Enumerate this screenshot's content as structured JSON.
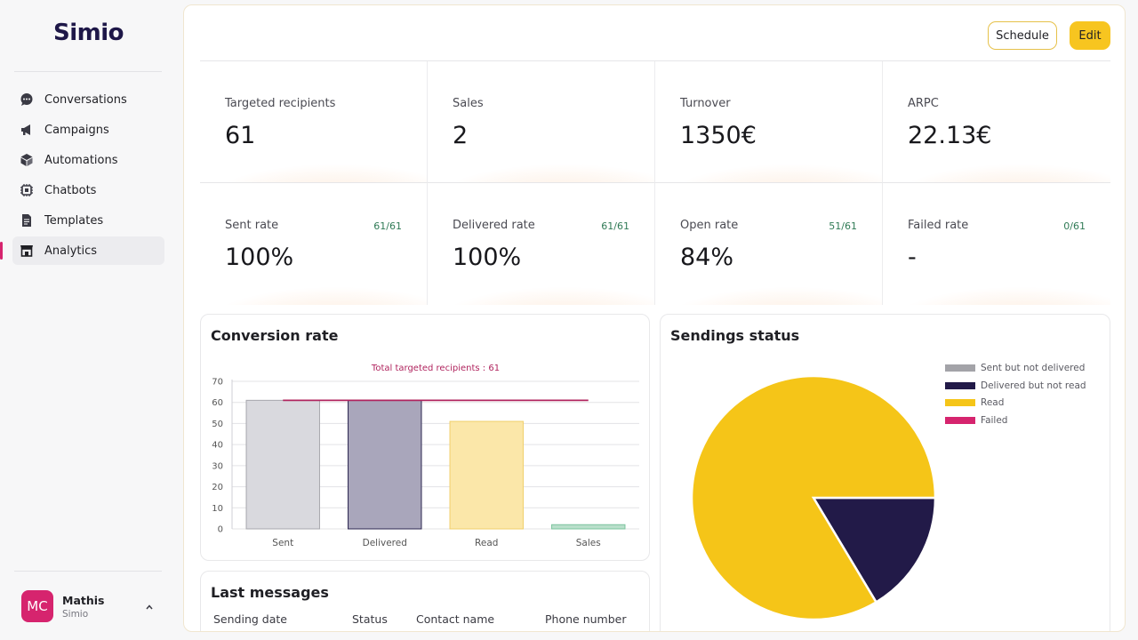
{
  "brand": {
    "name": "Simio"
  },
  "nav": {
    "items": [
      {
        "label": "Conversations",
        "icon": "chat-bubble-icon",
        "active": false
      },
      {
        "label": "Campaigns",
        "icon": "megaphone-icon",
        "active": false
      },
      {
        "label": "Automations",
        "icon": "cube-icon",
        "active": false
      },
      {
        "label": "Chatbots",
        "icon": "chip-icon",
        "active": false
      },
      {
        "label": "Templates",
        "icon": "document-icon",
        "active": false
      },
      {
        "label": "Analytics",
        "icon": "store-icon",
        "active": true
      }
    ]
  },
  "user": {
    "initials": "MC",
    "name": "Mathis",
    "org": "Simio"
  },
  "header": {
    "schedule_label": "Schedule",
    "edit_label": "Edit"
  },
  "stats": [
    {
      "label": "Targeted recipients",
      "value": "61",
      "ratio": ""
    },
    {
      "label": "Sales",
      "value": "2",
      "ratio": ""
    },
    {
      "label": "Turnover",
      "value": "1350€",
      "ratio": ""
    },
    {
      "label": "ARPC",
      "value": "22.13€",
      "ratio": ""
    },
    {
      "label": "Sent rate",
      "value": "100%",
      "ratio": "61/61"
    },
    {
      "label": "Delivered rate",
      "value": "100%",
      "ratio": "61/61"
    },
    {
      "label": "Open rate",
      "value": "84%",
      "ratio": "51/61"
    },
    {
      "label": "Failed rate",
      "value": "-",
      "ratio": "0/61"
    }
  ],
  "conversion_card": {
    "title": "Conversion rate"
  },
  "sendings_card": {
    "title": "Sendings status"
  },
  "messages_card": {
    "title": "Last messages",
    "columns": [
      "Sending date",
      "Status",
      "Contact name",
      "Phone number"
    ]
  },
  "colors": {
    "accent": "#f7c520",
    "brand_dark": "#1e1748",
    "highlight": "#d6246e"
  },
  "chart_data": [
    {
      "type": "bar",
      "title": "Total targeted recipients : 61",
      "categories": [
        "Sent",
        "Delivered",
        "Read",
        "Sales"
      ],
      "values": [
        61,
        61,
        51,
        2
      ],
      "colors": [
        "#d9d9de",
        "#a9a6bb",
        "#fbe7a9",
        "#b9dfcb"
      ],
      "borders": [
        "#a7a7ad",
        "#2b2550",
        "#f0cf6a",
        "#7cc49e"
      ],
      "ylim": [
        0,
        70
      ],
      "yticks": [
        0,
        10,
        20,
        30,
        40,
        50,
        60,
        70
      ],
      "reference_line": 61,
      "reference_color": "#b0245e",
      "grid": true
    },
    {
      "type": "pie",
      "labels": [
        "Sent but not delivered",
        "Delivered but not read",
        "Read",
        "Failed"
      ],
      "values": [
        0,
        10,
        51,
        0
      ],
      "colors": [
        "#a3a3a8",
        "#221a48",
        "#f5c518",
        "#d6246e"
      ],
      "legend": "top-right"
    }
  ]
}
